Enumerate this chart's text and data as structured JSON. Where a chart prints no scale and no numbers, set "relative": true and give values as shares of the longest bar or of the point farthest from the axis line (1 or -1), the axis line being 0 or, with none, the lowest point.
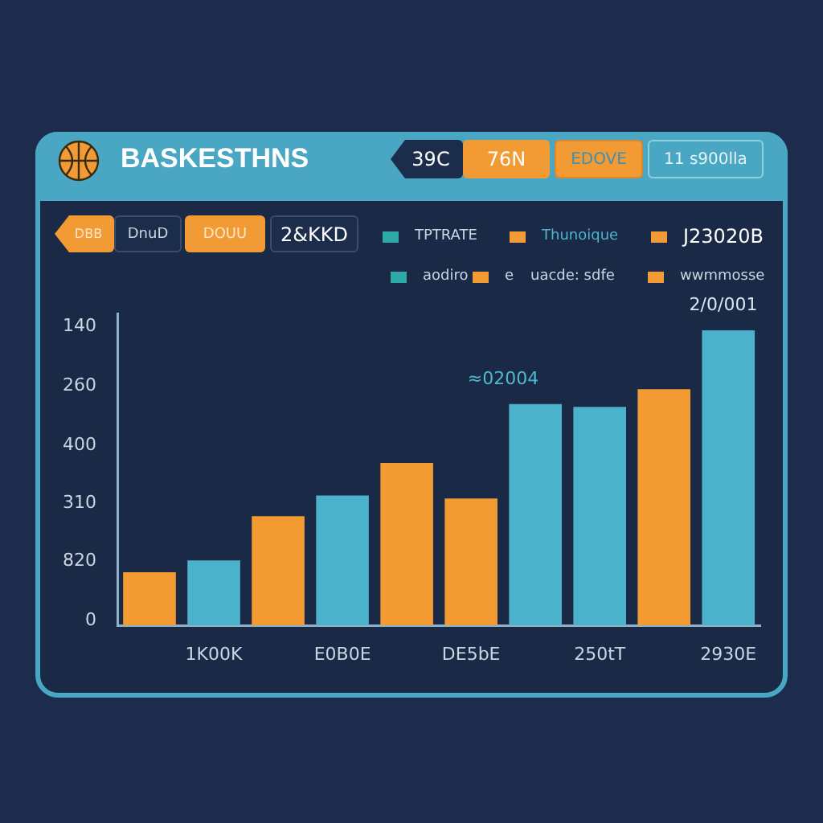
{
  "chart_data": {
    "type": "bar",
    "title": "BASKESTHNS",
    "categories": [
      null,
      "1K00K",
      null,
      "E0B0E",
      null,
      "DE5bE",
      null,
      "250tT",
      null,
      "2930E"
    ],
    "values": [
      0.18,
      0.22,
      0.37,
      0.44,
      0.55,
      0.43,
      0.75,
      0.74,
      0.8,
      1
    ],
    "colors": [
      "#f39b33",
      "#4cb1ca",
      "#f39b33",
      "#4cb1ca",
      "#f39b33",
      "#f39b33",
      "#4cb1ca",
      "#4cb1ca",
      "#f39b33",
      "#4cb1ca"
    ],
    "relative": true,
    "annotations": [
      "39C",
      "76N",
      "EDOVE",
      "11 s900lla",
      "DBB",
      "DnuD",
      "DOUU",
      "2&KKD",
      "TPTRATE",
      "Thunoique",
      "J23020B",
      "aodiro",
      "e",
      "uacde: sdfe",
      "wwmmosse",
      "2/0/001",
      "140",
      "260",
      "400",
      "310",
      "820",
      "0",
      "≈02004"
    ]
  }
}
